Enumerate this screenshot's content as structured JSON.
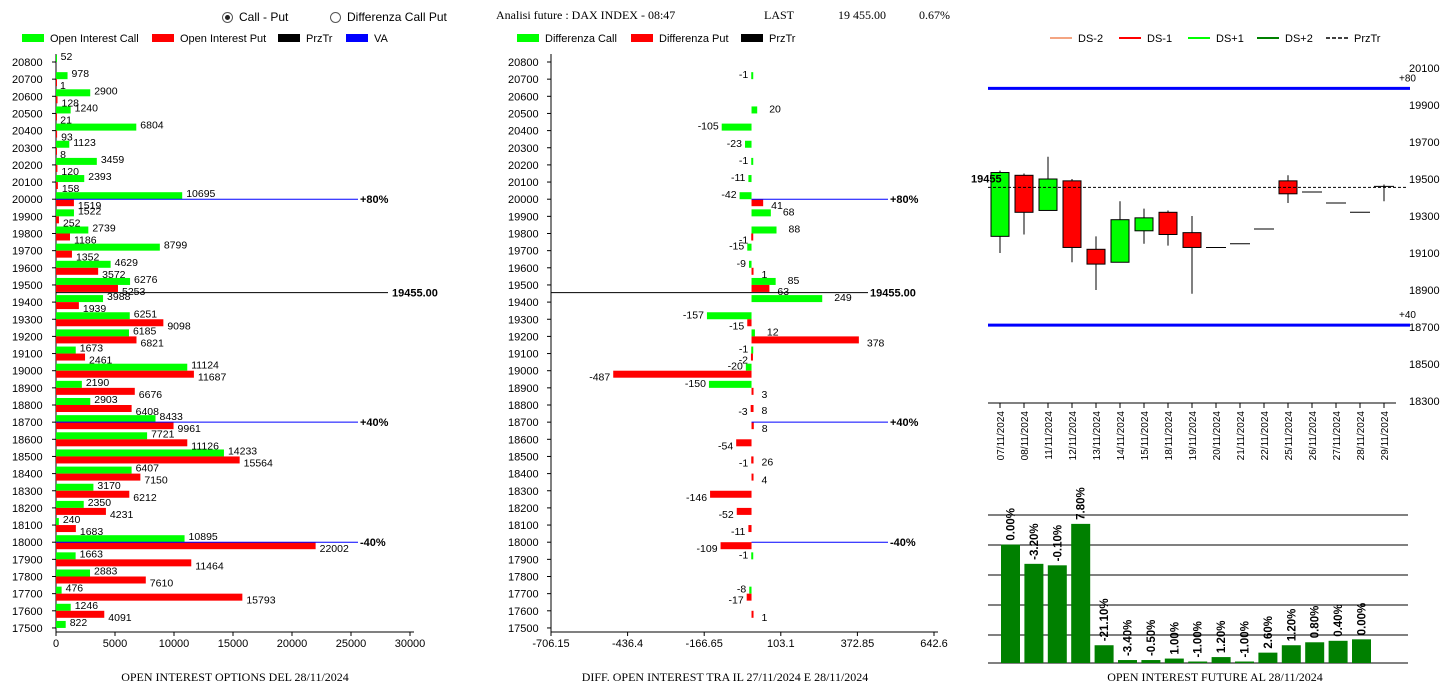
{
  "controls": {
    "radio_call_put": {
      "label": "Call - Put",
      "selected": true
    },
    "radio_diff": {
      "label": "Differenza Call Put",
      "selected": false
    }
  },
  "header": {
    "title": "Analisi future : DAX INDEX - 08:47",
    "last_label": "LAST",
    "last_value": "19 455.00",
    "change": "0.67%"
  },
  "colors": {
    "call": "#00ff00",
    "put": "#ff0000",
    "przTr": "#000000",
    "va": "#0000ff",
    "dark_green": "#008000",
    "ds_minus2": "#f4a582"
  },
  "footers": {
    "oi": "OPEN INTEREST OPTIONS DEL 28/11/2024",
    "diff": "DIFF. OPEN INTEREST TRA IL 27/11/2024 E 28/11/2024",
    "future": "OPEN INTEREST FUTURE AL 28/11/2024"
  },
  "chart_data": [
    {
      "type": "bar",
      "orientation": "horizontal",
      "legend": [
        "Open Interest Call",
        "Open Interest Put",
        "PrzTr",
        "VA"
      ],
      "categories": [
        "20800",
        "20700",
        "20600",
        "20500",
        "20400",
        "20300",
        "20200",
        "20100",
        "20000",
        "19900",
        "19800",
        "19700",
        "19600",
        "19500",
        "19400",
        "19300",
        "19200",
        "19100",
        "19000",
        "18900",
        "18800",
        "18700",
        "18600",
        "18500",
        "18400",
        "18300",
        "18200",
        "18100",
        "18000",
        "17900",
        "17800",
        "17700",
        "17600",
        "17500"
      ],
      "series": [
        {
          "name": "Open Interest Call",
          "values": [
            52,
            978,
            2900,
            1240,
            6804,
            1123,
            3459,
            2393,
            10695,
            1522,
            2739,
            8799,
            4629,
            6276,
            3988,
            6251,
            6185,
            1673,
            11124,
            2190,
            2903,
            8433,
            7721,
            14233,
            6407,
            3170,
            2350,
            240,
            10895,
            1663,
            2883,
            476,
            1246,
            822
          ]
        },
        {
          "name": "Open Interest Put",
          "values": [
            0,
            1,
            128,
            21,
            93,
            8,
            120,
            158,
            1519,
            252,
            1186,
            1352,
            3572,
            5253,
            1939,
            9098,
            6821,
            2461,
            11687,
            6676,
            6408,
            9961,
            11126,
            15564,
            7150,
            6212,
            4231,
            1683,
            22002,
            11464,
            7610,
            15793,
            4091,
            0
          ]
        }
      ],
      "xlim": [
        0,
        30000
      ],
      "xticks": [
        "0",
        "5000",
        "10000",
        "15000",
        "20000",
        "25000",
        "30000"
      ],
      "przTr": {
        "strike": 19455,
        "label": "19455.00"
      },
      "va_lines": [
        {
          "strike": 20000,
          "label": "+80%"
        },
        {
          "strike": 18700,
          "label": "+40%"
        },
        {
          "strike": 18000,
          "label": "-40%"
        }
      ],
      "title": "OPEN INTEREST OPTIONS DEL 28/11/2024"
    },
    {
      "type": "bar",
      "orientation": "horizontal",
      "legend": [
        "Differenza Call",
        "Differenza Put",
        "PrzTr"
      ],
      "categories": [
        "20800",
        "20700",
        "20600",
        "20500",
        "20400",
        "20300",
        "20200",
        "20100",
        "20000",
        "19900",
        "19800",
        "19700",
        "19600",
        "19500",
        "19400",
        "19300",
        "19200",
        "19100",
        "19000",
        "18900",
        "18800",
        "18700",
        "18600",
        "18500",
        "18400",
        "18300",
        "18200",
        "18100",
        "18000",
        "17900",
        "17800",
        "17700",
        "17600",
        "17500"
      ],
      "series": [
        {
          "name": "Differenza Call",
          "values": [
            null,
            -1,
            null,
            20,
            -105,
            -23,
            -1,
            -11,
            -42,
            68,
            88,
            -15,
            -9,
            85,
            249,
            -157,
            12,
            -1,
            -20,
            -150,
            null,
            null,
            null,
            null,
            null,
            null,
            null,
            null,
            null,
            -1,
            null,
            -8,
            null,
            null
          ]
        },
        {
          "name": "Differenza Put",
          "values": [
            null,
            null,
            null,
            null,
            null,
            null,
            null,
            null,
            41,
            null,
            -1,
            null,
            1,
            63,
            null,
            -15,
            378,
            -2,
            -487,
            3,
            -3,
            8,
            -54,
            -1,
            4,
            -146,
            -52,
            -11,
            -109,
            null,
            null,
            -17,
            1,
            null
          ]
        }
      ],
      "extra_labels": [
        {
          "strike": 18800,
          "value": 8
        },
        {
          "strike": 18500,
          "value": 26
        }
      ],
      "xlim": [
        -706.15,
        642.6
      ],
      "xticks": [
        "-706.15",
        "-436.4",
        "-166.65",
        "103.1",
        "372.85",
        "642.6"
      ],
      "przTr": {
        "strike": 19455,
        "label": "19455.00"
      },
      "va_lines": [
        {
          "strike": 20000,
          "label": "+80%"
        },
        {
          "strike": 18700,
          "label": "+40%"
        },
        {
          "strike": 18000,
          "label": "-40%"
        }
      ],
      "title": "DIFF. OPEN INTEREST TRA IL 27/11/2024 E 28/11/2024"
    },
    {
      "type": "candlestick",
      "legend": [
        "DS-2",
        "DS-1",
        "DS+1",
        "DS+2",
        "PrzTr"
      ],
      "categories": [
        "07/11/2024",
        "08/11/2024",
        "11/11/2024",
        "12/11/2024",
        "13/11/2024",
        "14/11/2024",
        "15/11/2024",
        "18/11/2024",
        "19/11/2024",
        "20/11/2024",
        "21/11/2024",
        "22/11/2024",
        "25/11/2024",
        "26/11/2024",
        "27/11/2024",
        "28/11/2024",
        "29/11/2024"
      ],
      "candles": [
        {
          "open": 19190,
          "close": 19535,
          "high": 19545,
          "low": 19100
        },
        {
          "open": 19520,
          "close": 19320,
          "high": 19530,
          "low": 19200
        },
        {
          "open": 19330,
          "close": 19500,
          "high": 19620,
          "low": 19330
        },
        {
          "open": 19490,
          "close": 19130,
          "high": 19500,
          "low": 19050
        },
        {
          "open": 19120,
          "close": 19040,
          "high": 19190,
          "low": 18900
        },
        {
          "open": 19050,
          "close": 19280,
          "high": 19380,
          "low": 19050
        },
        {
          "open": 19220,
          "close": 19290,
          "high": 19340,
          "low": 19150
        },
        {
          "open": 19320,
          "close": 19200,
          "high": 19330,
          "low": 19140
        },
        {
          "open": 19210,
          "close": 19130,
          "high": 19300,
          "low": 18880
        },
        {
          "open": 19130,
          "close": 19130,
          "high": 19130,
          "low": 19130
        },
        {
          "open": 19150,
          "close": 19150,
          "high": 19150,
          "low": 19150
        },
        {
          "open": 19230,
          "close": 19230,
          "high": 19230,
          "low": 19230
        },
        {
          "open": 19490,
          "close": 19420,
          "high": 19520,
          "low": 19370
        },
        {
          "open": 19430,
          "close": 19430,
          "high": 19430,
          "low": 19430
        },
        {
          "open": 19370,
          "close": 19370,
          "high": 19370,
          "low": 19370
        },
        {
          "open": 19320,
          "close": 19320,
          "high": 19320,
          "low": 19320
        },
        {
          "open": 19460,
          "close": 19460,
          "high": 19470,
          "low": 19380
        }
      ],
      "ylim": [
        18300,
        20100
      ],
      "yticks": [
        "20100",
        "19900",
        "19700",
        "19500",
        "19300",
        "19100",
        "18900",
        "18700",
        "18500",
        "18300"
      ],
      "va_lines": [
        {
          "value": 19990,
          "label": "+80"
        },
        {
          "value": 18710,
          "label": "+40"
        }
      ],
      "przTr": {
        "value": 19455,
        "label": "19455"
      }
    },
    {
      "type": "bar",
      "title": "OPEN INTEREST FUTURE AL 28/11/2024",
      "labels": [
        "0.00%",
        "-3.20%",
        "-0.10%",
        "7.80%",
        "-21.10%",
        "-3.40%",
        "-0.50%",
        "1.00%",
        "-1.00%",
        "1.20%",
        "-1.00%",
        "2.60%",
        "1.20%",
        "0.80%",
        "0.40%",
        "0.00%"
      ],
      "relative_values": [
        80,
        67,
        66,
        94,
        12,
        2,
        2,
        3,
        1,
        4,
        1,
        7,
        12,
        14,
        15,
        16
      ],
      "color": "#008000",
      "grid": true
    }
  ]
}
